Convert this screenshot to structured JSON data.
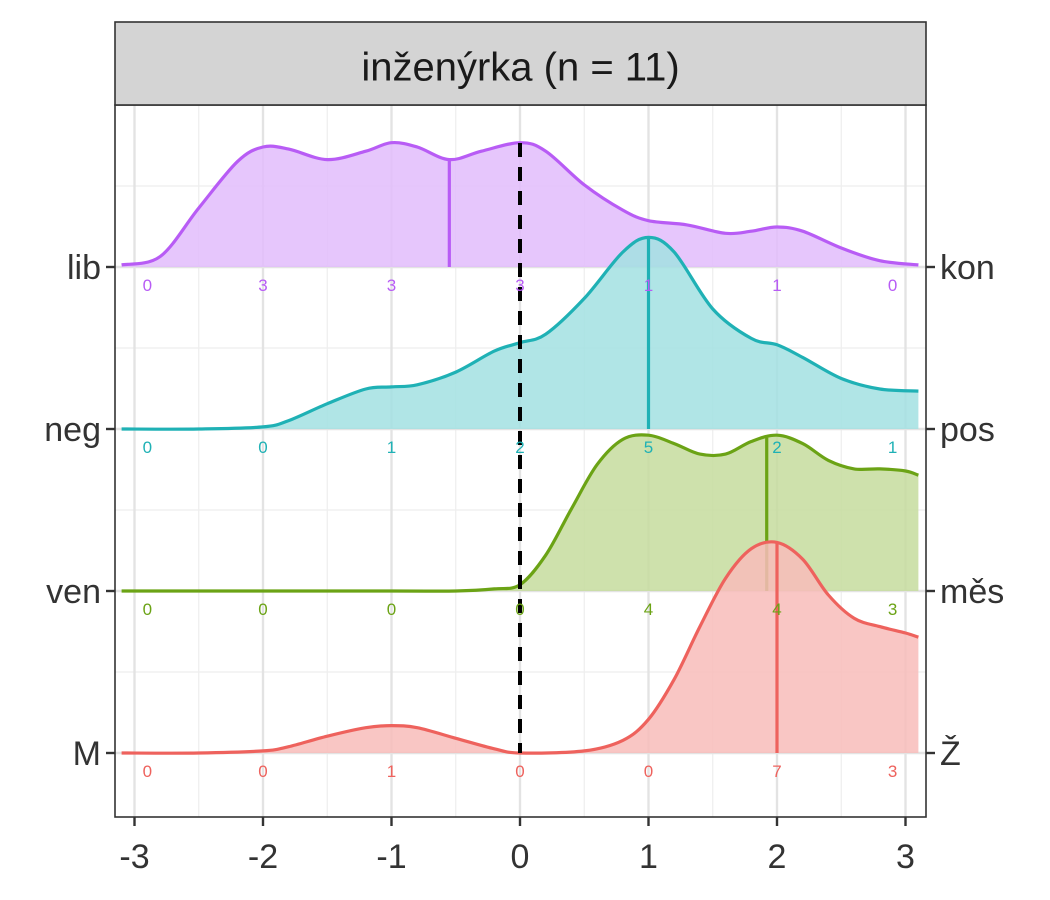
{
  "chart_data": {
    "type": "ridgeline",
    "panel_title": "inženýrka (n = 11)",
    "xlim": [
      -3,
      3
    ],
    "x_ticks": [
      -3,
      -2,
      -1,
      0,
      1,
      2,
      3
    ],
    "x_tick_labels": [
      "-3",
      "-2",
      "-1",
      "0",
      "1",
      "2",
      "3"
    ],
    "reference_line_x": 0,
    "grid": true,
    "rows": [
      {
        "left_label": "lib",
        "right_label": "kon",
        "color": "#B85CF5",
        "fill": "#E2BCFB",
        "counts": [
          0,
          3,
          3,
          3,
          1,
          1,
          0
        ],
        "count_labels": [
          "0",
          "3",
          "3",
          "3",
          "1",
          "1",
          "0"
        ],
        "median": -0.55,
        "density": [
          [
            -3.1,
            0.01
          ],
          [
            -2.8,
            0.05
          ],
          [
            -2.5,
            0.28
          ],
          [
            -2.2,
            0.5
          ],
          [
            -2.0,
            0.57
          ],
          [
            -1.8,
            0.56
          ],
          [
            -1.5,
            0.51
          ],
          [
            -1.2,
            0.55
          ],
          [
            -1.0,
            0.59
          ],
          [
            -0.8,
            0.57
          ],
          [
            -0.55,
            0.51
          ],
          [
            -0.3,
            0.55
          ],
          [
            0.0,
            0.59
          ],
          [
            0.2,
            0.55
          ],
          [
            0.5,
            0.39
          ],
          [
            0.8,
            0.27
          ],
          [
            1.0,
            0.22
          ],
          [
            1.3,
            0.2
          ],
          [
            1.6,
            0.16
          ],
          [
            1.8,
            0.17
          ],
          [
            2.0,
            0.19
          ],
          [
            2.2,
            0.17
          ],
          [
            2.5,
            0.09
          ],
          [
            2.8,
            0.03
          ],
          [
            3.1,
            0.01
          ]
        ]
      },
      {
        "left_label": "neg",
        "right_label": "pos",
        "color": "#1FB1B5",
        "fill": "#A2E1E2",
        "counts": [
          0,
          0,
          1,
          2,
          5,
          2,
          1
        ],
        "count_labels": [
          "0",
          "0",
          "1",
          "2",
          "5",
          "2",
          "1"
        ],
        "median": 1.0,
        "density": [
          [
            -3.1,
            0.0
          ],
          [
            -2.5,
            0.0
          ],
          [
            -2.0,
            0.01
          ],
          [
            -1.8,
            0.04
          ],
          [
            -1.5,
            0.12
          ],
          [
            -1.2,
            0.19
          ],
          [
            -1.0,
            0.2
          ],
          [
            -0.8,
            0.21
          ],
          [
            -0.5,
            0.27
          ],
          [
            -0.2,
            0.37
          ],
          [
            0.0,
            0.41
          ],
          [
            0.2,
            0.45
          ],
          [
            0.5,
            0.62
          ],
          [
            0.8,
            0.84
          ],
          [
            1.0,
            0.91
          ],
          [
            1.2,
            0.84
          ],
          [
            1.5,
            0.57
          ],
          [
            1.8,
            0.43
          ],
          [
            2.0,
            0.4
          ],
          [
            2.2,
            0.34
          ],
          [
            2.5,
            0.24
          ],
          [
            2.8,
            0.19
          ],
          [
            3.1,
            0.18
          ]
        ]
      },
      {
        "left_label": "ven",
        "right_label": "měs",
        "color": "#6BA315",
        "fill": "#C6DC9E",
        "counts": [
          0,
          0,
          0,
          0,
          4,
          4,
          3
        ],
        "count_labels": [
          "0",
          "0",
          "0",
          "0",
          "4",
          "4",
          "3"
        ],
        "median": 1.92,
        "density": [
          [
            -3.1,
            0.0
          ],
          [
            -1.0,
            0.0
          ],
          [
            -0.5,
            0.0
          ],
          [
            -0.2,
            0.01
          ],
          [
            0.0,
            0.03
          ],
          [
            0.2,
            0.17
          ],
          [
            0.4,
            0.39
          ],
          [
            0.6,
            0.6
          ],
          [
            0.8,
            0.72
          ],
          [
            1.0,
            0.74
          ],
          [
            1.2,
            0.7
          ],
          [
            1.4,
            0.65
          ],
          [
            1.6,
            0.65
          ],
          [
            1.8,
            0.71
          ],
          [
            2.0,
            0.74
          ],
          [
            2.2,
            0.7
          ],
          [
            2.4,
            0.62
          ],
          [
            2.6,
            0.58
          ],
          [
            2.8,
            0.58
          ],
          [
            3.0,
            0.57
          ],
          [
            3.1,
            0.55
          ]
        ]
      },
      {
        "left_label": "M",
        "right_label": "Ž",
        "color": "#EE625D",
        "fill": "#F8BCBA",
        "counts": [
          0,
          0,
          1,
          0,
          0,
          7,
          3
        ],
        "count_labels": [
          "0",
          "0",
          "1",
          "0",
          "0",
          "7",
          "3"
        ],
        "median": 2.0,
        "density": [
          [
            -3.1,
            0.0
          ],
          [
            -2.5,
            0.0
          ],
          [
            -2.0,
            0.01
          ],
          [
            -1.8,
            0.03
          ],
          [
            -1.5,
            0.08
          ],
          [
            -1.2,
            0.12
          ],
          [
            -1.0,
            0.13
          ],
          [
            -0.8,
            0.12
          ],
          [
            -0.5,
            0.07
          ],
          [
            -0.2,
            0.02
          ],
          [
            0.0,
            0.0
          ],
          [
            0.5,
            0.01
          ],
          [
            0.8,
            0.06
          ],
          [
            1.0,
            0.16
          ],
          [
            1.2,
            0.35
          ],
          [
            1.4,
            0.6
          ],
          [
            1.6,
            0.83
          ],
          [
            1.8,
            0.97
          ],
          [
            2.0,
            1.0
          ],
          [
            2.2,
            0.92
          ],
          [
            2.4,
            0.75
          ],
          [
            2.6,
            0.64
          ],
          [
            2.8,
            0.6
          ],
          [
            3.0,
            0.57
          ],
          [
            3.1,
            0.55
          ]
        ]
      }
    ]
  }
}
